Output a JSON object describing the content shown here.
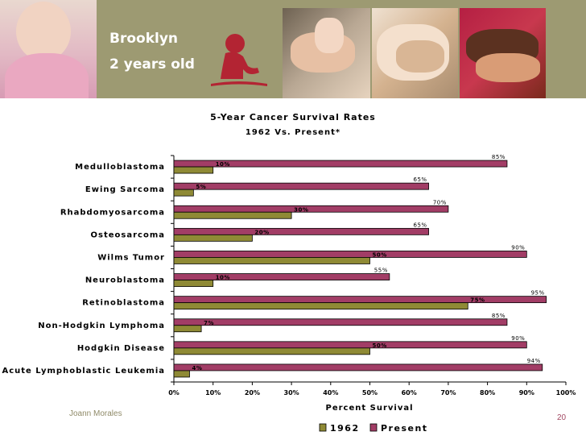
{
  "slide": {
    "caption_name": "Brooklyn",
    "caption_age": "2 years old",
    "presenter": "Joann Morales",
    "page_number": "20",
    "colors": {
      "banner": "#9d9a72",
      "logo": "#b32433",
      "accent_text": "#a34a63"
    }
  },
  "chart_data": {
    "type": "bar",
    "orientation": "horizontal",
    "title": "5-Year Cancer Survival Rates",
    "subtitle": "1962 Vs. Present*",
    "xlabel": "Percent Survival",
    "ylabel": "",
    "xlim": [
      0,
      100
    ],
    "x_ticks": [
      "0%",
      "10%",
      "20%",
      "30%",
      "40%",
      "50%",
      "60%",
      "70%",
      "80%",
      "90%",
      "100%"
    ],
    "categories": [
      "Medulloblastoma",
      "Ewing Sarcoma",
      "Rhabdomyosarcoma",
      "Osteosarcoma",
      "Wilms Tumor",
      "Neuroblastoma",
      "Retinoblastoma",
      "Non-Hodgkin Lymphoma",
      "Hodgkin Disease",
      "Acute Lymphoblastic Leukemia"
    ],
    "series": [
      {
        "name": "1962",
        "color": "#8f8a35",
        "values": [
          10,
          5,
          30,
          20,
          50,
          10,
          75,
          7,
          50,
          4
        ]
      },
      {
        "name": "Present",
        "color": "#a23d66",
        "values": [
          85,
          65,
          70,
          65,
          90,
          55,
          95,
          85,
          90,
          94
        ]
      }
    ],
    "data_label_suffix": "%",
    "legend_position": "bottom",
    "grid": false
  }
}
